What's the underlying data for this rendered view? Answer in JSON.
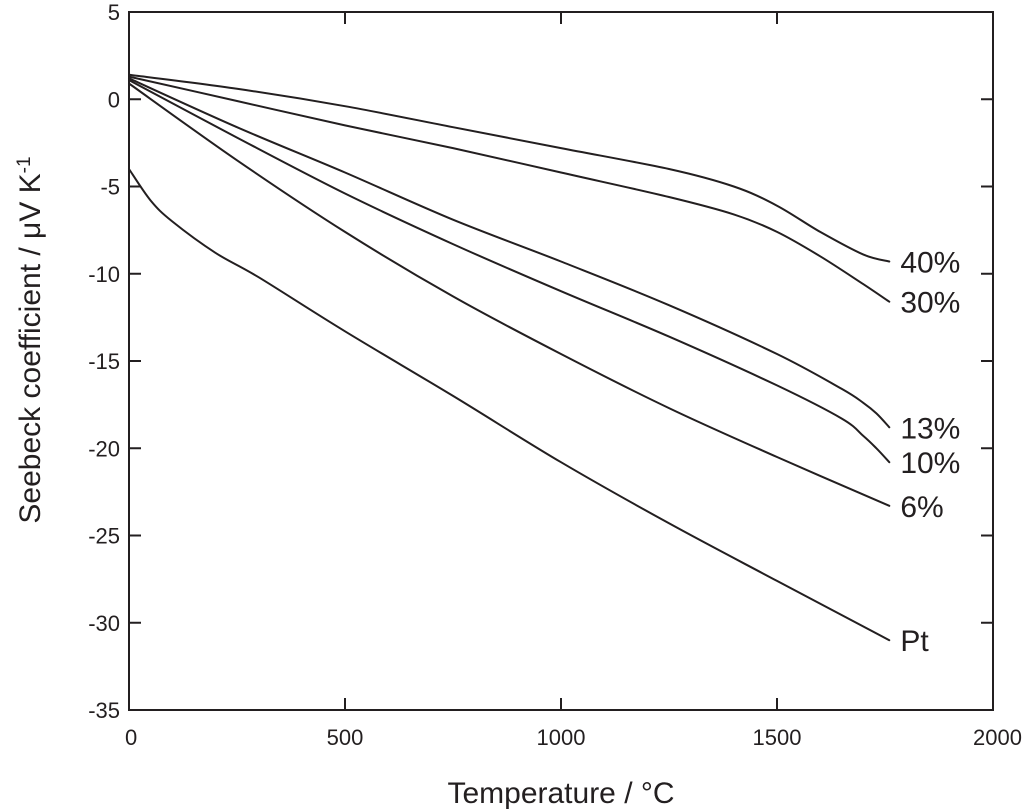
{
  "chart_data": {
    "type": "line",
    "xlabel": "Temperature / °C",
    "ylabel_parts": [
      "Seebeck coefficient / μV K",
      "-1"
    ],
    "xlim": [
      0,
      2000
    ],
    "ylim": [
      -35,
      5
    ],
    "xticks": [
      0,
      500,
      1000,
      1500,
      2000
    ],
    "yticks": [
      5,
      0,
      -5,
      -10,
      -15,
      -20,
      -25,
      -30,
      -35
    ],
    "xtick_labels": [
      "0",
      "500",
      "1000",
      "1500",
      "2000"
    ],
    "ytick_labels": [
      "5",
      "0",
      "-5",
      "-10",
      "-15",
      "-20",
      "-25",
      "-30",
      "-35"
    ],
    "grid": false,
    "series": [
      {
        "name": "40%",
        "x": [
          0,
          250,
          500,
          750,
          1000,
          1250,
          1400,
          1500,
          1600,
          1700,
          1760
        ],
        "y": [
          1.4,
          0.6,
          -0.4,
          -1.6,
          -2.8,
          -4.0,
          -5.0,
          -6.1,
          -7.6,
          -8.9,
          -9.3
        ]
      },
      {
        "name": "30%",
        "x": [
          0,
          250,
          500,
          750,
          1000,
          1250,
          1400,
          1500,
          1600,
          1700,
          1760
        ],
        "y": [
          1.3,
          -0.1,
          -1.5,
          -2.8,
          -4.2,
          -5.6,
          -6.6,
          -7.6,
          -9.0,
          -10.6,
          -11.6
        ]
      },
      {
        "name": "13%",
        "x": [
          0,
          250,
          500,
          750,
          1000,
          1250,
          1500,
          1650,
          1700,
          1730,
          1760
        ],
        "y": [
          1.2,
          -1.6,
          -4.2,
          -6.9,
          -9.3,
          -11.8,
          -14.6,
          -16.6,
          -17.4,
          -18.0,
          -18.8
        ]
      },
      {
        "name": "10%",
        "x": [
          0,
          250,
          500,
          750,
          1000,
          1250,
          1500,
          1650,
          1700,
          1730,
          1760
        ],
        "y": [
          1.1,
          -2.2,
          -5.4,
          -8.3,
          -11.0,
          -13.6,
          -16.4,
          -18.3,
          -19.3,
          -20.0,
          -20.8
        ]
      },
      {
        "name": "6%",
        "x": [
          0,
          250,
          500,
          750,
          1000,
          1250,
          1500,
          1760
        ],
        "y": [
          0.9,
          -3.5,
          -7.6,
          -11.3,
          -14.6,
          -17.7,
          -20.5,
          -23.3
        ]
      },
      {
        "name": "Pt",
        "x": [
          0,
          50,
          100,
          200,
          300,
          500,
          750,
          1000,
          1250,
          1500,
          1760
        ],
        "y": [
          -4.0,
          -5.8,
          -7.0,
          -8.8,
          -10.2,
          -13.3,
          -17.0,
          -20.8,
          -24.3,
          -27.6,
          -31.0
        ]
      }
    ]
  }
}
